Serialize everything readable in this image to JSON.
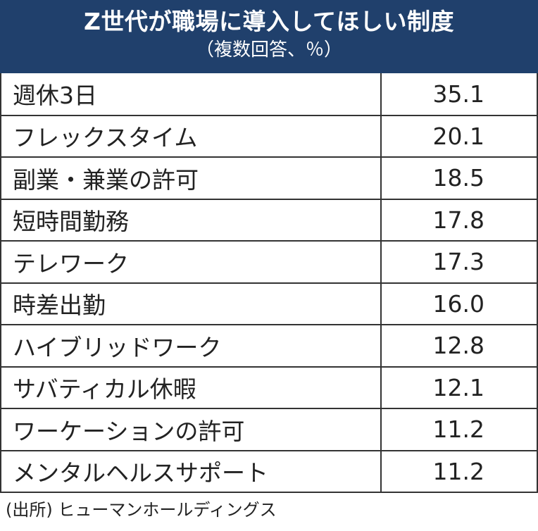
{
  "header": {
    "title": "Z世代が職場に導入してほしい制度",
    "subtitle": "（複数回答、％）"
  },
  "chart_data": {
    "type": "table",
    "title": "Z世代が職場に導入してほしい制度",
    "subtitle": "（複数回答、％）",
    "rows": [
      {
        "label": "週休3日",
        "value": "35.1"
      },
      {
        "label": "フレックスタイム",
        "value": "20.1"
      },
      {
        "label": "副業・兼業の許可",
        "value": "18.5"
      },
      {
        "label": "短時間勤務",
        "value": "17.8"
      },
      {
        "label": "テレワーク",
        "value": "17.3"
      },
      {
        "label": "時差出勤",
        "value": "16.0"
      },
      {
        "label": "ハイブリッドワーク",
        "value": "12.8"
      },
      {
        "label": "サバティカル休暇",
        "value": "12.1"
      },
      {
        "label": "ワーケーションの許可",
        "value": "11.2"
      },
      {
        "label": "メンタルヘルスサポート",
        "value": "11.2"
      }
    ]
  },
  "source": "(出所) ヒューマンホールディングス"
}
